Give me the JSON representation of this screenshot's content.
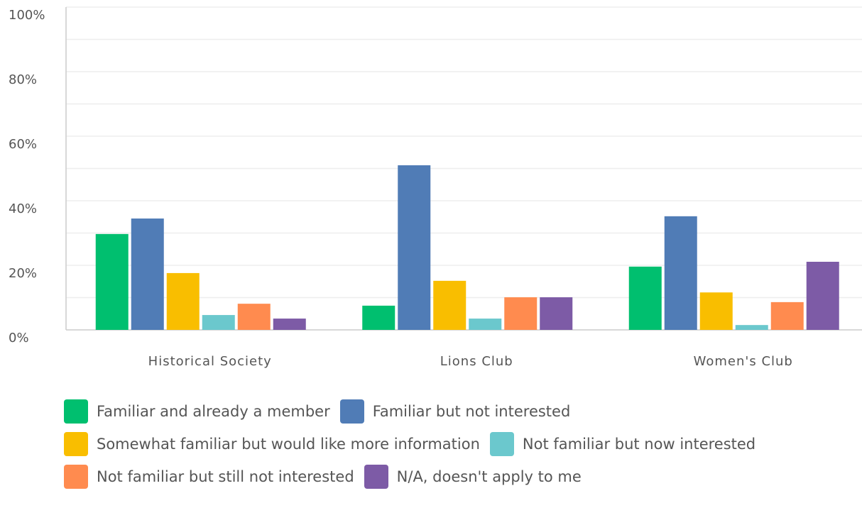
{
  "chart_data": {
    "type": "bar",
    "categories": [
      "Historical Society",
      "Lions Club",
      "Women's Club"
    ],
    "series": [
      {
        "name": "Familiar and already a member",
        "color": "#00bf6f",
        "values": [
          29.7,
          7.5,
          19.6
        ]
      },
      {
        "name": "Familiar but not interested",
        "color": "#507cb6",
        "values": [
          34.5,
          51,
          35.2
        ]
      },
      {
        "name": "Somewhat familiar but would like more information",
        "color": "#f9be00",
        "values": [
          17.6,
          15.2,
          11.6
        ]
      },
      {
        "name": "Not familiar but now interested",
        "color": "#6bc8cd",
        "values": [
          4.6,
          3.5,
          1.5
        ]
      },
      {
        "name": "Not familiar but still not interested",
        "color": "#ff8b4f",
        "values": [
          8.1,
          10.1,
          8.6
        ]
      },
      {
        "name": "N/A, doesn't apply to me",
        "color": "#7d5ba6",
        "values": [
          3.5,
          10.1,
          21.1
        ]
      }
    ],
    "ylim": [
      0,
      100
    ],
    "yticks": [
      {
        "value": 0,
        "label": "0%"
      },
      {
        "value": 20,
        "label": "20%"
      },
      {
        "value": 40,
        "label": "40%"
      },
      {
        "value": 60,
        "label": "60%"
      },
      {
        "value": 80,
        "label": "80%"
      },
      {
        "value": 100,
        "label": "100%"
      }
    ],
    "grid": true,
    "legend": "bottom"
  }
}
